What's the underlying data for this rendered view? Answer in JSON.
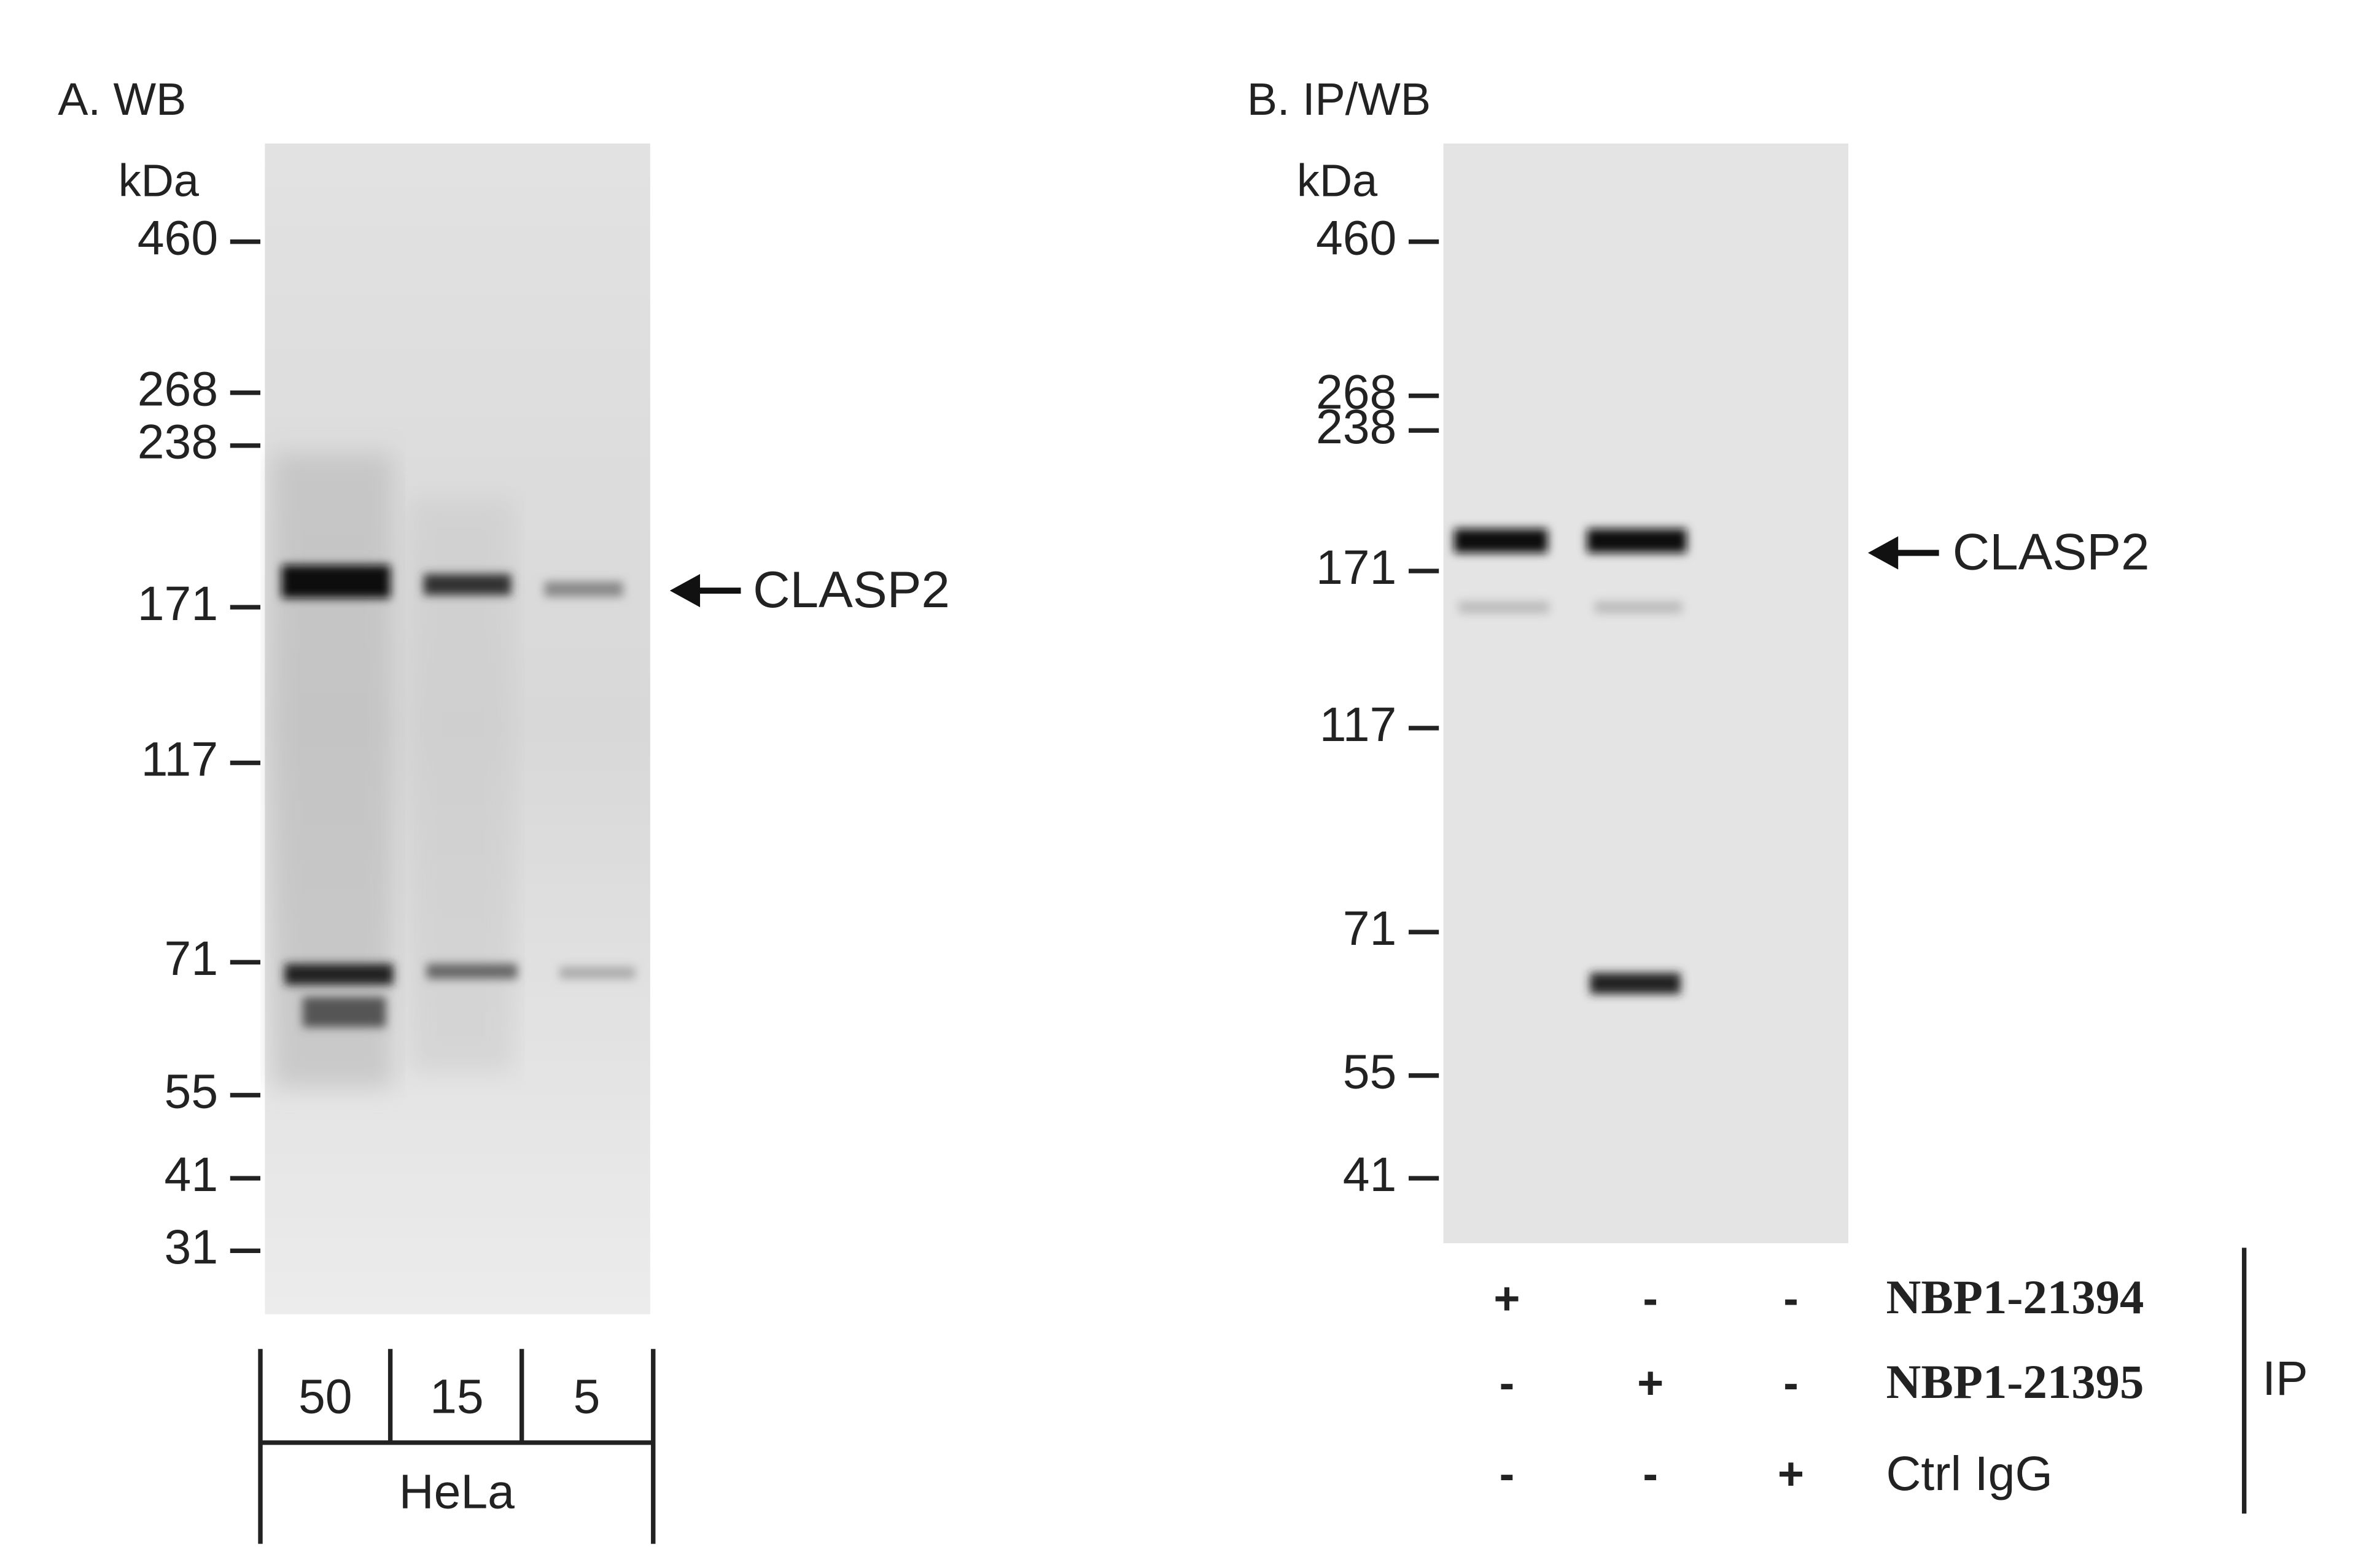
{
  "panel_a": {
    "title": "A. WB",
    "unit": "kDa",
    "markers": [
      "460",
      "268",
      "238",
      "171",
      "117",
      "71",
      "55",
      "41",
      "31"
    ],
    "target": "CLASP2",
    "lanes": [
      "50",
      "15",
      "5"
    ],
    "sample": "HeLa"
  },
  "panel_b": {
    "title": "B. IP/WB",
    "unit": "kDa",
    "markers": [
      "460",
      "268",
      "238",
      "171",
      "117",
      "71",
      "55",
      "41"
    ],
    "target": "CLASP2",
    "rows": [
      {
        "signs": [
          "+",
          "-",
          "-"
        ],
        "label": "NBP1-21394"
      },
      {
        "signs": [
          "-",
          "+",
          "-"
        ],
        "label": "NBP1-21395"
      },
      {
        "signs": [
          "-",
          "-",
          "+"
        ],
        "label": "Ctrl IgG"
      }
    ],
    "group": "IP"
  }
}
